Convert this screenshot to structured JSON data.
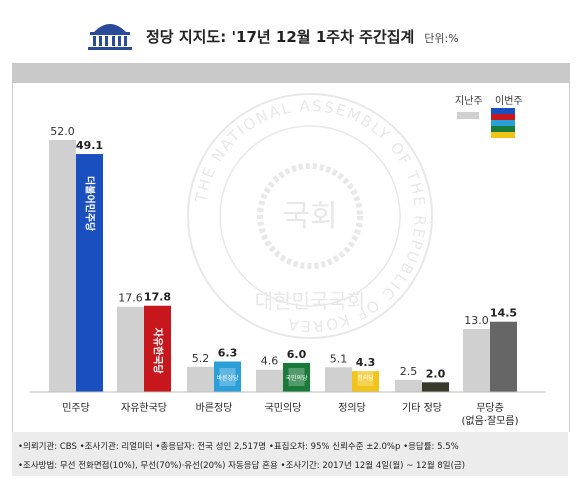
{
  "header": {
    "title": "정당 지지도: '17년 12월 1주차 주간집계",
    "unit": "단위:%"
  },
  "legend": {
    "prev_label": "지난주",
    "curr_label": "이번주"
  },
  "chart_data": {
    "type": "bar",
    "categories": [
      "민주당",
      "자유한국당",
      "바른정당",
      "국민의당",
      "정의당",
      "기타 정당",
      "무당층\n(없음·잘모름)"
    ],
    "series": [
      {
        "name": "지난주",
        "values": [
          52.0,
          17.6,
          5.2,
          4.6,
          5.1,
          2.5,
          13.0
        ],
        "color": "#d0d0d0"
      },
      {
        "name": "이번주",
        "values": [
          49.1,
          17.8,
          6.3,
          6.0,
          4.3,
          2.0,
          14.5
        ],
        "colors": [
          "#1a4fbf",
          "#c8161d",
          "#2a9fd8",
          "#1a7a3a",
          "#f2c318",
          "#3a3a2a",
          "#666666"
        ]
      }
    ],
    "prev_labels": [
      "52.0",
      "17.6",
      "5.2",
      "4.6",
      "5.1",
      "2.5",
      "13.0"
    ],
    "curr_labels": [
      "49.1",
      "17.8",
      "6.3",
      "6.0",
      "4.3",
      "2.0",
      "14.5"
    ],
    "ylim": [
      0,
      52
    ]
  },
  "party_logos": [
    "더불어민주당",
    "자유한국당",
    "바른정당",
    "국민의당",
    "정의당"
  ],
  "watermark": {
    "ring_text": "THE NATIONAL ASSEMBLY OF THE REPUBLIC OF KOREA",
    "center_text": "국회",
    "bottom_text": "대한민국국회"
  },
  "footer": {
    "line1": "•의뢰기관: CBS  •조사기관: 리얼미터  •총응답자: 전국 성인 2,517명  •표집오차: 95% 신뢰수준 ±2.0%p  •응답률: 5.5%",
    "line2": "•조사방법: 무선 전화면접(10%),  무선(70%)·유선(20%) 자동응답 혼용  •조사기간: 2017년 12월 4일(월) ~ 12월 8일(금)"
  },
  "colors": {
    "band": "#c9c9c9",
    "prev_bar": "#d0d0d0",
    "footer_bg": "#ececec"
  }
}
